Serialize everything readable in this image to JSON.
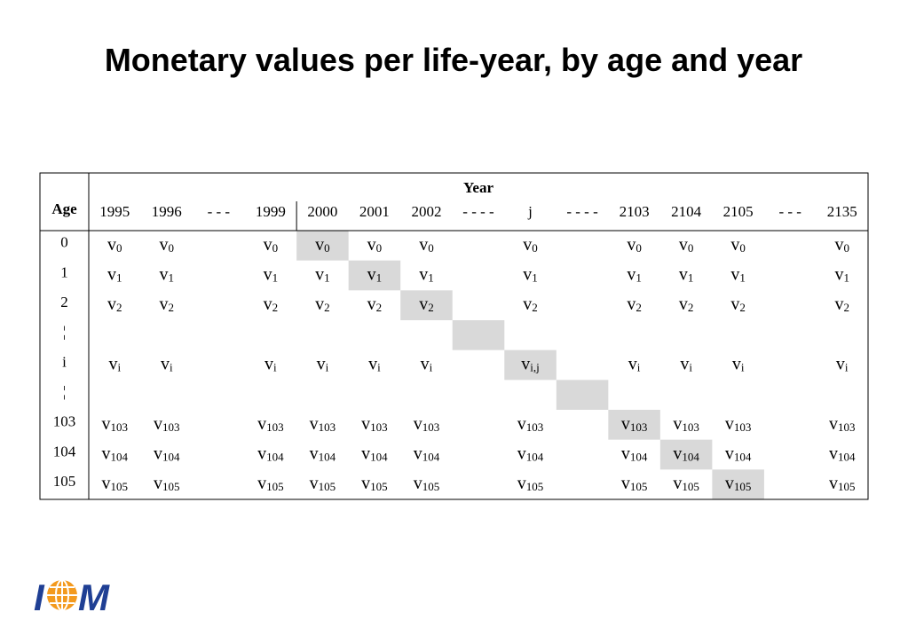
{
  "title": "Monetary values per life-year, by age and year",
  "table": {
    "corner": "Age",
    "group_header": "Year",
    "columns": [
      "1995",
      "1996",
      "- - -",
      "1999",
      "2000",
      "2001",
      "2002",
      "- - - -",
      "j",
      "- - - -",
      "2103",
      "2104",
      "2105",
      "- - -",
      "2135"
    ],
    "rows": [
      {
        "age": "0",
        "cells": [
          [
            "v",
            "0"
          ],
          [
            "v",
            "0"
          ],
          null,
          [
            "v",
            "0"
          ],
          [
            "v",
            "0"
          ],
          [
            "v",
            "0"
          ],
          [
            "v",
            "0"
          ],
          null,
          [
            "v",
            "0"
          ],
          null,
          [
            "v",
            "0"
          ],
          [
            "v",
            "0"
          ],
          [
            "v",
            "0"
          ],
          null,
          [
            "v",
            "0"
          ]
        ]
      },
      {
        "age": "1",
        "cells": [
          [
            "v",
            "1"
          ],
          [
            "v",
            "1"
          ],
          null,
          [
            "v",
            "1"
          ],
          [
            "v",
            "1"
          ],
          [
            "v",
            "1"
          ],
          [
            "v",
            "1"
          ],
          null,
          [
            "v",
            "1"
          ],
          null,
          [
            "v",
            "1"
          ],
          [
            "v",
            "1"
          ],
          [
            "v",
            "1"
          ],
          null,
          [
            "v",
            "1"
          ]
        ]
      },
      {
        "age": "2",
        "cells": [
          [
            "v",
            "2"
          ],
          [
            "v",
            "2"
          ],
          null,
          [
            "v",
            "2"
          ],
          [
            "v",
            "2"
          ],
          [
            "v",
            "2"
          ],
          [
            "v",
            "2"
          ],
          null,
          [
            "v",
            "2"
          ],
          null,
          [
            "v",
            "2"
          ],
          [
            "v",
            "2"
          ],
          [
            "v",
            "2"
          ],
          null,
          [
            "v",
            "2"
          ]
        ]
      },
      {
        "age": "¦"
      },
      {
        "age": "i",
        "cells": [
          [
            "v",
            "i"
          ],
          [
            "v",
            "i"
          ],
          null,
          [
            "v",
            "i"
          ],
          [
            "v",
            "i"
          ],
          [
            "v",
            "i"
          ],
          [
            "v",
            "i"
          ],
          null,
          [
            "v",
            "i,j"
          ],
          null,
          [
            "v",
            "i"
          ],
          [
            "v",
            "i"
          ],
          [
            "v",
            "i"
          ],
          null,
          [
            "v",
            "i"
          ]
        ]
      },
      {
        "age": "¦"
      },
      {
        "age": "103",
        "cells": [
          [
            "v",
            "103"
          ],
          [
            "v",
            "103"
          ],
          null,
          [
            "v",
            "103"
          ],
          [
            "v",
            "103"
          ],
          [
            "v",
            "103"
          ],
          [
            "v",
            "103"
          ],
          null,
          [
            "v",
            "103"
          ],
          null,
          [
            "v",
            "103"
          ],
          [
            "v",
            "103"
          ],
          [
            "v",
            "103"
          ],
          null,
          [
            "v",
            "103"
          ]
        ]
      },
      {
        "age": "104",
        "cells": [
          [
            "v",
            "104"
          ],
          [
            "v",
            "104"
          ],
          null,
          [
            "v",
            "104"
          ],
          [
            "v",
            "104"
          ],
          [
            "v",
            "104"
          ],
          [
            "v",
            "104"
          ],
          null,
          [
            "v",
            "104"
          ],
          null,
          [
            "v",
            "104"
          ],
          [
            "v",
            "104"
          ],
          [
            "v",
            "104"
          ],
          null,
          [
            "v",
            "104"
          ]
        ]
      },
      {
        "age": "105",
        "cells": [
          [
            "v",
            "105"
          ],
          [
            "v",
            "105"
          ],
          null,
          [
            "v",
            "105"
          ],
          [
            "v",
            "105"
          ],
          [
            "v",
            "105"
          ],
          [
            "v",
            "105"
          ],
          null,
          [
            "v",
            "105"
          ],
          null,
          [
            "v",
            "105"
          ],
          [
            "v",
            "105"
          ],
          [
            "v",
            "105"
          ],
          null,
          [
            "v",
            "105"
          ]
        ]
      }
    ]
  },
  "logo": [
    "I",
    "M"
  ]
}
